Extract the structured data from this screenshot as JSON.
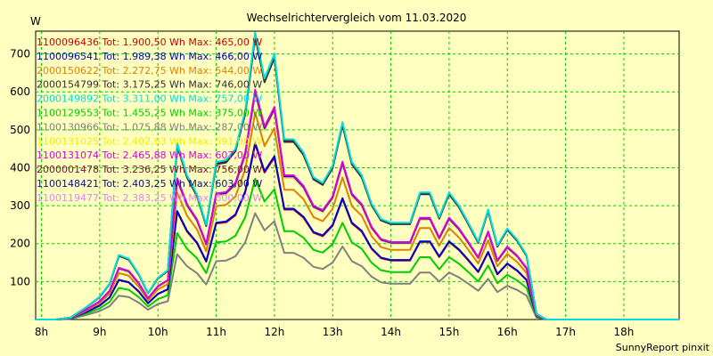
{
  "chart_data": {
    "type": "line",
    "title": "Wechselrichtervergleich vom 11.03.2020",
    "ylabel": "W",
    "xlabel": "",
    "footer": "SunnyReport pinxit",
    "ylim": [
      0,
      760
    ],
    "xlim": [
      7.9,
      18.95
    ],
    "grid": true,
    "legend_position": "top-left",
    "x_ticks": [
      8,
      9,
      10,
      11,
      12,
      13,
      14,
      15,
      16,
      17,
      18
    ],
    "x_tick_labels": [
      "8h",
      "9h",
      "10h",
      "11h",
      "12h",
      "13h",
      "14h",
      "15h",
      "16h",
      "17h",
      "18h"
    ],
    "y_ticks": [
      100,
      200,
      300,
      400,
      500,
      600,
      700
    ],
    "x": [
      7.9,
      8.25,
      8.5,
      8.75,
      9.0,
      9.17,
      9.33,
      9.5,
      9.67,
      9.83,
      10.0,
      10.17,
      10.33,
      10.5,
      10.67,
      10.83,
      11.0,
      11.17,
      11.33,
      11.5,
      11.67,
      11.83,
      12.0,
      12.17,
      12.33,
      12.5,
      12.67,
      12.83,
      13.0,
      13.17,
      13.33,
      13.5,
      13.67,
      13.83,
      14.0,
      14.17,
      14.33,
      14.5,
      14.67,
      14.83,
      15.0,
      15.17,
      15.33,
      15.5,
      15.67,
      15.83,
      16.0,
      16.17,
      16.33,
      16.5,
      16.67,
      16.83,
      17.0,
      17.17,
      17.33,
      17.5,
      17.67,
      17.83,
      18.0,
      18.17,
      18.33,
      18.5,
      18.67,
      18.95
    ],
    "series": [
      {
        "name": "1100096436",
        "label": "1100096436 Tot: 1.900,50 Wh Max: 465,00 W",
        "color": "#cc0000",
        "scale": 0.61
      },
      {
        "name": "1100096541",
        "label": "1100096541 Tot: 1.989,38 Wh Max: 466,00 W",
        "color": "#0000cc",
        "scale": 0.615
      },
      {
        "name": "2000150622",
        "label": "2000150622 Tot: 2.272,75 Wh Max: 544,00 W",
        "color": "#e08000",
        "scale": 0.72
      },
      {
        "name": "2000154799",
        "label": "2000154799 Tot: 3.175,25 Wh Max: 746,00 W",
        "color": "#303030",
        "scale": 0.985
      },
      {
        "name": "2000149892",
        "label": "2000149892 Tot: 3.311,00 Wh Max: 757,00 W",
        "color": "#00dddd",
        "scale": 1.0
      },
      {
        "name": "1100129553",
        "label": "1100129553 Tot: 1.455,25 Wh Max: 375,00 W",
        "color": "#00cc00",
        "scale": 0.49
      },
      {
        "name": "1100130966",
        "label": "1100130966 Tot: 1.075,88 Wh Max: 287,00 W",
        "color": "#808080",
        "scale": 0.37
      },
      {
        "name": "1100131025",
        "label": "1100131025 Tot: 2.402,63 Wh Max: 591,00 W",
        "color": "#eeee00",
        "scale": 0.785
      },
      {
        "name": "1100131074",
        "label": "1100131074 Tot: 2.465,88 Wh Max: 607,00 W",
        "color": "#dd00dd",
        "scale": 0.8
      },
      {
        "name": "2000001478",
        "label": "2000001478 Tot: 3.236,25 Wh Max: 756,00 W",
        "color": "#7a1030",
        "scale": 0.99
      },
      {
        "name": "1100148421",
        "label": "1100148421 Tot: 2.403,25 Wh Max: 603,00 W",
        "color": "#101070",
        "scale": 0.795
      },
      {
        "name": "1100119477",
        "label": "1100119477 Tot: 2.383,25 Wh Max: 600,00 W",
        "color": "#dd88ee",
        "scale": 0.79
      }
    ],
    "base_values": [
      0,
      0,
      5,
      30,
      60,
      95,
      170,
      160,
      120,
      70,
      110,
      130,
      465,
      380,
      330,
      250,
      415,
      420,
      450,
      550,
      757,
      635,
      700,
      475,
      475,
      440,
      375,
      360,
      405,
      520,
      415,
      380,
      305,
      265,
      255,
      255,
      255,
      335,
      335,
      270,
      335,
      300,
      255,
      205,
      290,
      195,
      240,
      210,
      170,
      15,
      0,
      0,
      0,
      0,
      0,
      0,
      0,
      0,
      0,
      0,
      0,
      0,
      0,
      0
    ]
  }
}
